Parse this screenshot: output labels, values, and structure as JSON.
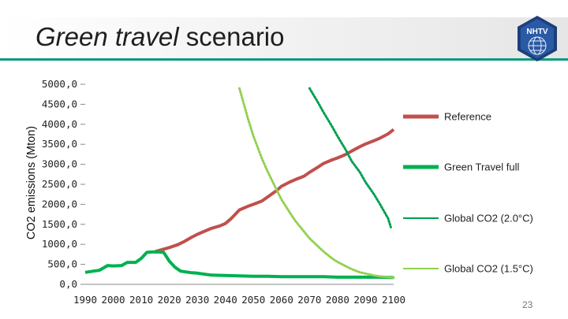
{
  "slide": {
    "title_emphasis": "Green travel",
    "title_rest": " scenario",
    "logo_text": "NHTV",
    "page_number": "23",
    "accent_color": "#0a9a7c"
  },
  "chart_data": {
    "type": "line",
    "title": "",
    "xlabel": "",
    "ylabel": "CO2 emissions (Mton)",
    "xlim": [
      1990,
      2100
    ],
    "ylim": [
      0,
      5000
    ],
    "grid": false,
    "legend_position": "right",
    "x_ticks": [
      "1990",
      "2000",
      "2010",
      "2020",
      "2030",
      "2040",
      "2050",
      "2060",
      "2070",
      "2080",
      "2090",
      "2100"
    ],
    "y_ticks": [
      "0,0",
      "500,0",
      "1000,0",
      "1500,0",
      "2000,0",
      "2500,0",
      "3000,0",
      "3500,0",
      "4000,0",
      "4500,0",
      "5000,0"
    ],
    "series": [
      {
        "name": "Reference",
        "color": "#c0504d",
        "style": "solid-thick",
        "x": [
          2015,
          2018,
          2020,
          2023,
          2025,
          2028,
          2030,
          2033,
          2035,
          2038,
          2040,
          2042,
          2045,
          2048,
          2050,
          2053,
          2055,
          2058,
          2060,
          2063,
          2065,
          2068,
          2070,
          2073,
          2075,
          2078,
          2080,
          2083,
          2085,
          2088,
          2090,
          2093,
          2095,
          2098,
          2100
        ],
        "y": [
          820,
          880,
          920,
          990,
          1060,
          1180,
          1250,
          1340,
          1400,
          1460,
          1520,
          1640,
          1860,
          1950,
          2000,
          2080,
          2180,
          2330,
          2450,
          2560,
          2620,
          2700,
          2800,
          2930,
          3020,
          3110,
          3160,
          3250,
          3330,
          3440,
          3510,
          3590,
          3650,
          3760,
          3870
        ]
      },
      {
        "name": "Green Travel full",
        "color": "#00b050",
        "style": "solid-thick",
        "x": [
          1990,
          1993,
          1995,
          1998,
          2000,
          2003,
          2005,
          2008,
          2010,
          2012,
          2014,
          2016,
          2018,
          2020,
          2022,
          2024,
          2026,
          2028,
          2030,
          2035,
          2040,
          2045,
          2050,
          2055,
          2060,
          2065,
          2070,
          2075,
          2080,
          2085,
          2090,
          2095,
          2100
        ],
        "y": [
          300,
          330,
          350,
          470,
          460,
          470,
          550,
          550,
          650,
          800,
          810,
          810,
          800,
          580,
          430,
          330,
          310,
          290,
          280,
          230,
          220,
          210,
          200,
          200,
          190,
          190,
          190,
          190,
          180,
          180,
          180,
          180,
          170
        ]
      },
      {
        "name": "Global CO2 (2.0°C)",
        "color": "#00a050",
        "style": "dotted",
        "x": [
          2070,
          2073,
          2075,
          2078,
          2080,
          2083,
          2085,
          2088,
          2090,
          2093,
          2095,
          2098,
          2099
        ],
        "y": [
          4900,
          4550,
          4300,
          3950,
          3700,
          3350,
          3080,
          2800,
          2550,
          2250,
          2020,
          1650,
          1430
        ]
      },
      {
        "name": "Global CO2 (1.5°C)",
        "color": "#92d050",
        "style": "dotted",
        "x": [
          2045,
          2048,
          2050,
          2053,
          2055,
          2058,
          2060,
          2063,
          2065,
          2068,
          2070,
          2073,
          2075,
          2078,
          2080,
          2083,
          2085,
          2088,
          2090,
          2093,
          2095,
          2098,
          2100
        ],
        "y": [
          4900,
          4150,
          3700,
          3150,
          2830,
          2400,
          2120,
          1790,
          1580,
          1320,
          1150,
          950,
          820,
          650,
          560,
          450,
          380,
          300,
          270,
          220,
          200,
          180,
          170
        ]
      }
    ]
  }
}
